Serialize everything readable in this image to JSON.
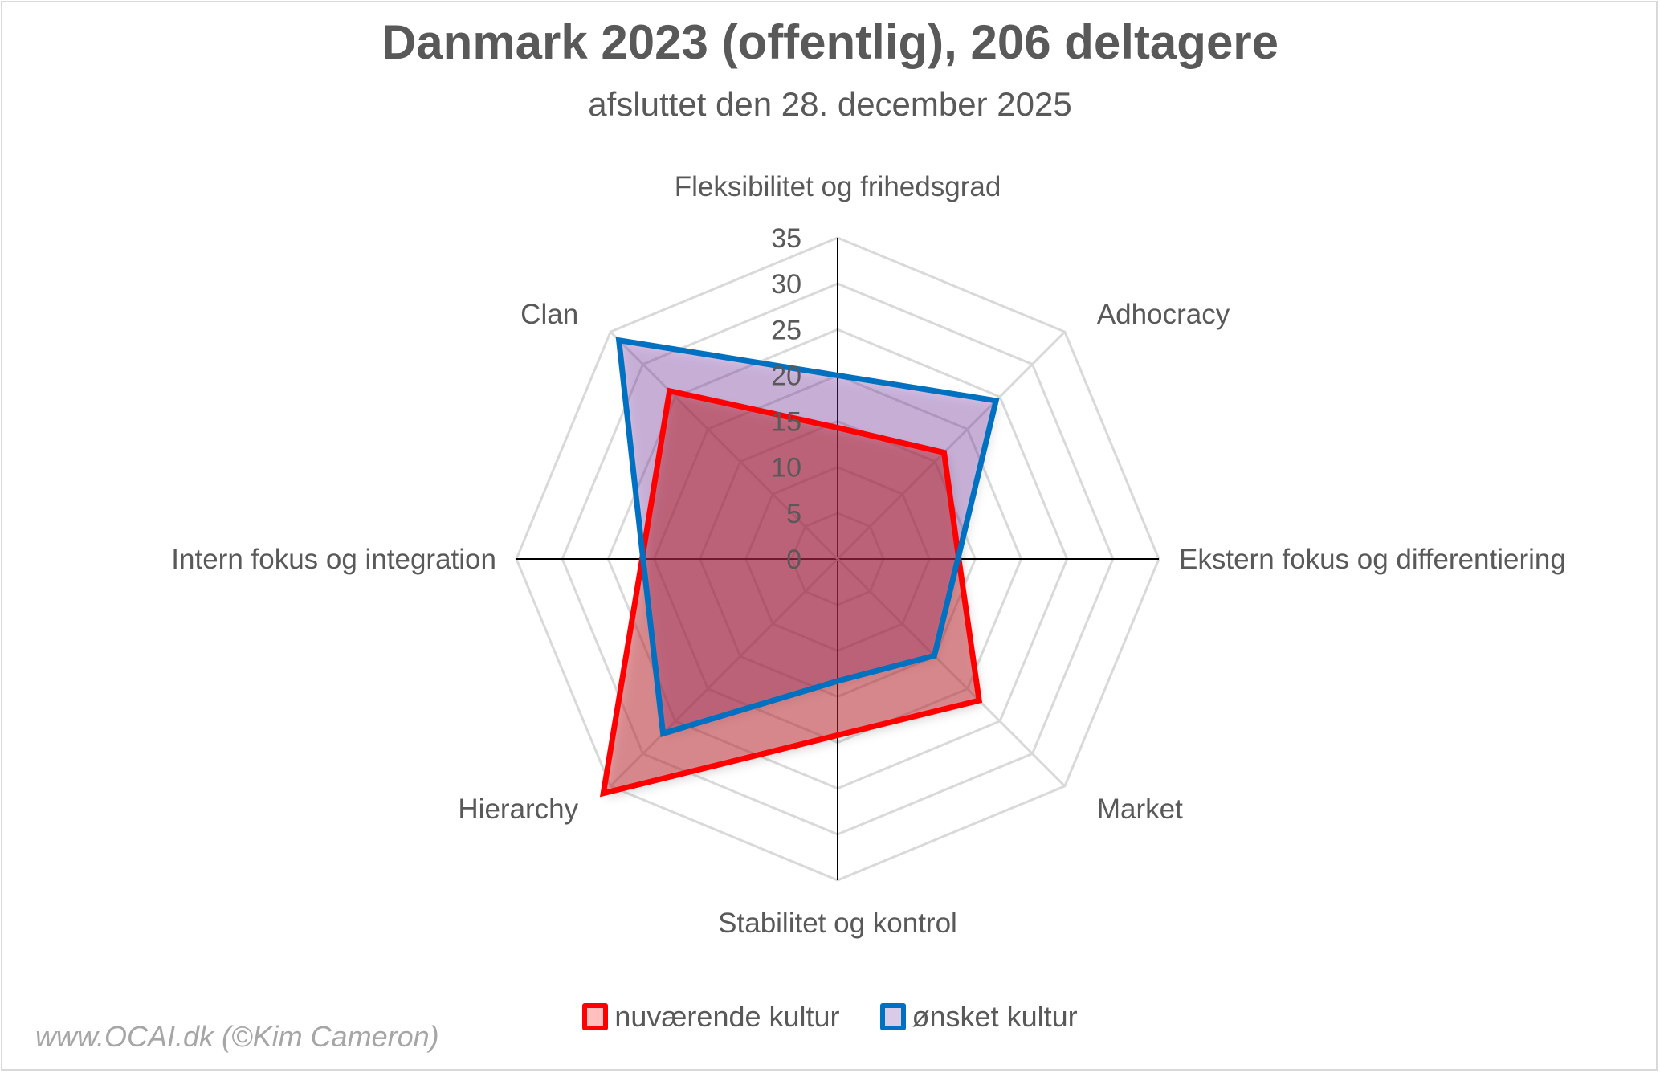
{
  "chart_data": {
    "type": "radar",
    "title": "Danmark 2023 (offentlig), 206 deltagere",
    "subtitle": "afsluttet den 28. december 2025",
    "categories": [
      "Fleksibilitet og frihedsgrad",
      "Adhocracy",
      "Ekstern fokus og differentiering",
      "Market",
      "Stabilitet og kontrol",
      "Hierarchy",
      "Intern fokus og integration",
      "Clan"
    ],
    "rlim": [
      0,
      35
    ],
    "ticks": [
      0,
      5,
      10,
      15,
      20,
      25,
      30,
      35
    ],
    "tick_labels": [
      "0",
      "5",
      "10",
      "15",
      "20",
      "25",
      "30",
      "35"
    ],
    "grid": true,
    "legend_position": "bottom",
    "series": [
      {
        "name": "ønsket kultur",
        "values": [
          20.0,
          24.4,
          13.1,
          14.9,
          13.3,
          26.9,
          21.2,
          33.7
        ],
        "line_color": "#0070C0",
        "fill_color": "#7030A0"
      },
      {
        "name": "nuværende kultur",
        "values": [
          14.3,
          16.4,
          13.2,
          21.8,
          19.2,
          36.1,
          21.3,
          25.9
        ],
        "line_color": "#FF0000",
        "fill_color": "#C0282A"
      }
    ],
    "legend": [
      {
        "label": "nuværende kultur",
        "line_color": "#FF0000",
        "fill_color": "#FFBFBF"
      },
      {
        "label": "ønsket kultur",
        "line_color": "#0070C0",
        "fill_color": "#D9CCE8"
      }
    ]
  },
  "watermark": "www.OCAI.dk (©Kim Cameron)"
}
